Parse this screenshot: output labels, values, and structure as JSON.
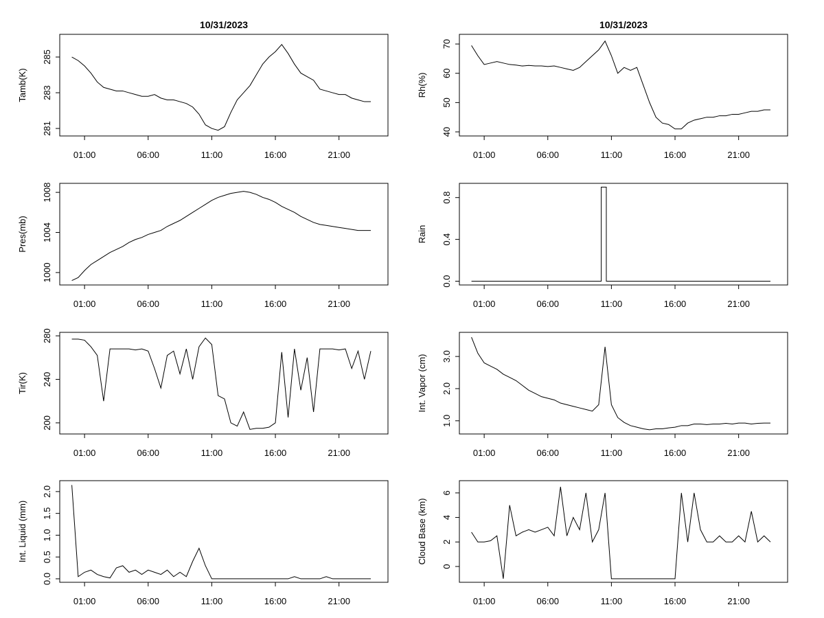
{
  "chart_data": [
    {
      "type": "line",
      "title": "10/31/2023",
      "ylabel": "Tamb(K)",
      "x": [
        0,
        0.5,
        1,
        1.5,
        2,
        2.5,
        3,
        3.5,
        4,
        4.5,
        5,
        5.5,
        6,
        6.5,
        7,
        7.5,
        8,
        8.5,
        9,
        9.5,
        10,
        10.5,
        11,
        11.5,
        12,
        12.5,
        13,
        13.5,
        14,
        14.5,
        15,
        15.5,
        16,
        16.5,
        17,
        17.5,
        18,
        18.5,
        19,
        19.5,
        20,
        20.5,
        21,
        21.5,
        22,
        22.5,
        23,
        23.5
      ],
      "values": [
        285.0,
        284.8,
        284.5,
        284.1,
        283.6,
        283.3,
        283.2,
        283.1,
        283.1,
        283.0,
        282.9,
        282.8,
        282.8,
        282.9,
        282.7,
        282.6,
        282.6,
        282.5,
        282.4,
        282.2,
        281.8,
        281.2,
        281.0,
        280.9,
        281.1,
        281.9,
        282.6,
        283.0,
        283.4,
        284.0,
        284.6,
        285.0,
        285.3,
        285.7,
        285.2,
        284.6,
        284.1,
        283.9,
        283.7,
        283.2,
        283.1,
        283.0,
        282.9,
        282.9,
        282.7,
        282.6,
        282.5,
        282.5
      ],
      "xlim": [
        -0.95,
        24.85
      ],
      "ylim": [
        280.58,
        286.27
      ],
      "xticks": [
        {
          "value": 1,
          "label": "01:00"
        },
        {
          "value": 6,
          "label": "06:00"
        },
        {
          "value": 11,
          "label": "11:00"
        },
        {
          "value": 16,
          "label": "16:00"
        },
        {
          "value": 21,
          "label": "21:00"
        }
      ],
      "yticks": [
        281,
        283,
        285
      ],
      "color": "#000000"
    },
    {
      "type": "line",
      "title": "10/31/2023",
      "ylabel": "Rh(%)",
      "x": [
        0,
        0.5,
        1,
        1.5,
        2,
        2.5,
        3,
        3.5,
        4,
        4.5,
        5,
        5.5,
        6,
        6.5,
        7,
        7.5,
        8,
        8.5,
        9,
        9.5,
        10,
        10.5,
        11,
        11.5,
        12,
        12.5,
        13,
        13.5,
        14,
        14.5,
        15,
        15.5,
        16,
        16.5,
        17,
        17.5,
        18,
        18.5,
        19,
        19.5,
        20,
        20.5,
        21,
        21.5,
        22,
        22.5,
        23,
        23.5
      ],
      "values": [
        69.5,
        66,
        63,
        63.5,
        64,
        63.5,
        63,
        62.8,
        62.5,
        62.7,
        62.5,
        62.5,
        62.3,
        62.5,
        62,
        61.5,
        61,
        62,
        64,
        66,
        68,
        71,
        66,
        60,
        62,
        61,
        62,
        56,
        50,
        45,
        43,
        42.5,
        41,
        41,
        43,
        44,
        44.5,
        45,
        45,
        45.5,
        45.5,
        46,
        46,
        46.5,
        47,
        47,
        47.5,
        47.5
      ],
      "xlim": [
        -0.95,
        24.85
      ],
      "ylim": [
        38.6,
        73.3
      ],
      "xticks": [
        {
          "value": 1,
          "label": "01:00"
        },
        {
          "value": 6,
          "label": "06:00"
        },
        {
          "value": 11,
          "label": "11:00"
        },
        {
          "value": 16,
          "label": "16:00"
        },
        {
          "value": 21,
          "label": "21:00"
        }
      ],
      "yticks": [
        40,
        50,
        60,
        70
      ],
      "color": "#000000"
    },
    {
      "type": "line",
      "ylabel": "Pres(mb)",
      "x": [
        0,
        0.5,
        1,
        1.5,
        2,
        2.5,
        3,
        3.5,
        4,
        4.5,
        5,
        5.5,
        6,
        6.5,
        7,
        7.5,
        8,
        8.5,
        9,
        9.5,
        10,
        10.5,
        11,
        11.5,
        12,
        12.5,
        13,
        13.5,
        14,
        14.5,
        15,
        15.5,
        16,
        16.5,
        17,
        17.5,
        18,
        18.5,
        19,
        19.5,
        20,
        20.5,
        21,
        21.5,
        22,
        22.5,
        23,
        23.5
      ],
      "values": [
        999.2,
        999.5,
        1000.2,
        1000.8,
        1001.2,
        1001.6,
        1002,
        1002.3,
        1002.6,
        1003,
        1003.3,
        1003.5,
        1003.8,
        1004,
        1004.2,
        1004.6,
        1004.9,
        1005.2,
        1005.6,
        1006,
        1006.4,
        1006.8,
        1007.2,
        1007.5,
        1007.7,
        1007.9,
        1008,
        1008.1,
        1008,
        1007.8,
        1007.5,
        1007.3,
        1007,
        1006.6,
        1006.3,
        1006,
        1005.6,
        1005.3,
        1005,
        1004.8,
        1004.7,
        1004.6,
        1004.5,
        1004.4,
        1004.3,
        1004.2,
        1004.2,
        1004.2
      ],
      "xlim": [
        -0.95,
        24.85
      ],
      "ylim": [
        998.76,
        1008.9
      ],
      "xticks": [
        {
          "value": 1,
          "label": "01:00"
        },
        {
          "value": 6,
          "label": "06:00"
        },
        {
          "value": 11,
          "label": "11:00"
        },
        {
          "value": 16,
          "label": "16:00"
        },
        {
          "value": 21,
          "label": "21:00"
        }
      ],
      "yticks": [
        1000,
        1004,
        1008
      ],
      "color": "#000000"
    },
    {
      "type": "line",
      "ylabel": "Rain",
      "x": [
        0,
        10.2,
        10.2,
        10.6,
        10.6,
        23.5
      ],
      "values": [
        0,
        0,
        0.9,
        0.9,
        0,
        0
      ],
      "xlim": [
        -0.95,
        24.85
      ],
      "ylim": [
        -0.036,
        0.936
      ],
      "xticks": [
        {
          "value": 1,
          "label": "01:00"
        },
        {
          "value": 6,
          "label": "06:00"
        },
        {
          "value": 11,
          "label": "11:00"
        },
        {
          "value": 16,
          "label": "16:00"
        },
        {
          "value": 21,
          "label": "21:00"
        }
      ],
      "yticks": [
        {
          "value": 0,
          "label": "0.0"
        },
        0.4,
        0.8
      ],
      "color": "#000000"
    },
    {
      "type": "line",
      "ylabel": "Tir(K)",
      "x": [
        0,
        0.5,
        1,
        1.5,
        2,
        2.5,
        3,
        3.5,
        4,
        4.5,
        5,
        5.5,
        6,
        6.5,
        7,
        7.5,
        8,
        8.5,
        9,
        9.5,
        10,
        10.5,
        11,
        11.5,
        12,
        12.5,
        13,
        13.5,
        14,
        14.5,
        15,
        15.5,
        16,
        16.5,
        17,
        17.5,
        18,
        18.5,
        19,
        19.5,
        20,
        20.5,
        21,
        21.5,
        22,
        22.5,
        23,
        23.5
      ],
      "values": [
        277,
        277,
        276,
        270,
        262,
        220,
        268,
        268,
        268,
        268,
        267,
        268,
        266,
        250,
        232,
        262,
        266,
        245,
        268,
        240,
        270,
        278,
        272,
        225,
        222,
        200,
        197,
        210,
        194,
        195,
        195,
        196,
        200,
        265,
        205,
        268,
        230,
        260,
        210,
        268,
        268,
        268,
        267,
        268,
        250,
        266,
        240,
        266
      ],
      "xlim": [
        -0.95,
        24.85
      ],
      "ylim": [
        189.8,
        283.2
      ],
      "xticks": [
        {
          "value": 1,
          "label": "01:00"
        },
        {
          "value": 6,
          "label": "06:00"
        },
        {
          "value": 11,
          "label": "11:00"
        },
        {
          "value": 16,
          "label": "16:00"
        },
        {
          "value": 21,
          "label": "21:00"
        }
      ],
      "yticks": [
        200,
        240,
        280
      ],
      "color": "#000000"
    },
    {
      "type": "line",
      "ylabel": "Int. Vapor (cm)",
      "x": [
        0,
        0.5,
        1,
        1.5,
        2,
        2.5,
        3,
        3.5,
        4,
        4.5,
        5,
        5.5,
        6,
        6.5,
        7,
        7.5,
        8,
        8.5,
        9,
        9.5,
        10,
        10.5,
        11,
        11.5,
        12,
        12.5,
        13,
        13.5,
        14,
        14.5,
        15,
        15.5,
        16,
        16.5,
        17,
        17.5,
        18,
        18.5,
        19,
        19.5,
        20,
        20.5,
        21,
        21.5,
        22,
        22.5,
        23,
        23.5
      ],
      "values": [
        3.6,
        3.1,
        2.8,
        2.7,
        2.6,
        2.45,
        2.35,
        2.25,
        2.1,
        1.95,
        1.85,
        1.75,
        1.7,
        1.65,
        1.55,
        1.5,
        1.45,
        1.4,
        1.35,
        1.3,
        1.5,
        3.3,
        1.5,
        1.1,
        0.95,
        0.85,
        0.8,
        0.75,
        0.72,
        0.75,
        0.75,
        0.78,
        0.8,
        0.85,
        0.85,
        0.9,
        0.9,
        0.88,
        0.9,
        0.9,
        0.92,
        0.9,
        0.93,
        0.93,
        0.9,
        0.92,
        0.93,
        0.93
      ],
      "xlim": [
        -0.95,
        24.85
      ],
      "ylim": [
        0.59,
        3.75
      ],
      "xticks": [
        {
          "value": 1,
          "label": "01:00"
        },
        {
          "value": 6,
          "label": "06:00"
        },
        {
          "value": 11,
          "label": "11:00"
        },
        {
          "value": 16,
          "label": "16:00"
        },
        {
          "value": 21,
          "label": "21:00"
        }
      ],
      "yticks": [
        {
          "value": 1,
          "label": "1.0"
        },
        {
          "value": 2,
          "label": "2.0"
        },
        {
          "value": 3,
          "label": "3.0"
        }
      ],
      "color": "#000000"
    },
    {
      "type": "line",
      "ylabel": "Int. Liquid (mm)",
      "x": [
        0,
        0.5,
        1,
        1.5,
        2,
        2.5,
        3,
        3.5,
        4,
        4.5,
        5,
        5.5,
        6,
        6.5,
        7,
        7.5,
        8,
        8.5,
        9,
        9.5,
        10,
        10.5,
        11,
        11.5,
        12,
        12.5,
        13,
        13.5,
        14,
        14.5,
        15,
        15.5,
        16,
        16.5,
        17,
        17.5,
        18,
        18.5,
        19,
        19.5,
        20,
        20.5,
        21,
        21.5,
        22,
        22.5,
        23,
        23.5
      ],
      "values": [
        2.15,
        0.05,
        0.15,
        0.2,
        0.1,
        0.05,
        0.02,
        0.25,
        0.3,
        0.15,
        0.2,
        0.1,
        0.2,
        0.15,
        0.1,
        0.2,
        0.05,
        0.15,
        0.05,
        0.4,
        0.7,
        0.3,
        0,
        0,
        0,
        0,
        0,
        0,
        0,
        0,
        0,
        0,
        0,
        0,
        0,
        0.05,
        0,
        0,
        0,
        0,
        0.05,
        0,
        0,
        0,
        0,
        0,
        0,
        0
      ],
      "xlim": [
        -0.95,
        24.85
      ],
      "ylim": [
        -0.08,
        2.25
      ],
      "xticks": [
        {
          "value": 1,
          "label": "01:00"
        },
        {
          "value": 6,
          "label": "06:00"
        },
        {
          "value": 11,
          "label": "11:00"
        },
        {
          "value": 16,
          "label": "16:00"
        },
        {
          "value": 21,
          "label": "21:00"
        }
      ],
      "yticks": [
        {
          "value": 0,
          "label": "0.0"
        },
        0.5,
        {
          "value": 1,
          "label": "1.0"
        },
        1.5,
        {
          "value": 2,
          "label": "2.0"
        }
      ],
      "color": "#000000"
    },
    {
      "type": "line",
      "ylabel": "Cloud Base (km)",
      "x": [
        0,
        0.5,
        1,
        1.5,
        2,
        2.5,
        3,
        3.5,
        4,
        4.5,
        5,
        5.5,
        6,
        6.5,
        7,
        7.5,
        8,
        8.5,
        9,
        9.5,
        10,
        10.5,
        11,
        11.5,
        12,
        12.5,
        13,
        13.5,
        14,
        14.5,
        15,
        15.5,
        16,
        16.5,
        17,
        17.5,
        18,
        18.5,
        19,
        19.5,
        20,
        20.5,
        21,
        21.5,
        22,
        22.5,
        23,
        23.5
      ],
      "values": [
        2.8,
        2,
        2,
        2.1,
        2.5,
        -1,
        5,
        2.5,
        2.8,
        3,
        2.8,
        3,
        3.2,
        2.5,
        6.5,
        2.5,
        4,
        3,
        6,
        2,
        3,
        6,
        -1,
        -1,
        -1,
        -1,
        -1,
        -1,
        -1,
        -1,
        -1,
        -1,
        -1,
        6,
        2,
        6,
        3,
        2,
        2,
        2.5,
        2,
        2,
        2.5,
        2,
        4.5,
        2,
        2.5,
        2
      ],
      "xlim": [
        -0.95,
        24.85
      ],
      "ylim": [
        -1.29,
        7.0
      ],
      "xticks": [
        {
          "value": 1,
          "label": "01:00"
        },
        {
          "value": 6,
          "label": "06:00"
        },
        {
          "value": 11,
          "label": "11:00"
        },
        {
          "value": 16,
          "label": "16:00"
        },
        {
          "value": 21,
          "label": "21:00"
        }
      ],
      "yticks": [
        0,
        2,
        4,
        6
      ],
      "color": "#000000"
    }
  ]
}
